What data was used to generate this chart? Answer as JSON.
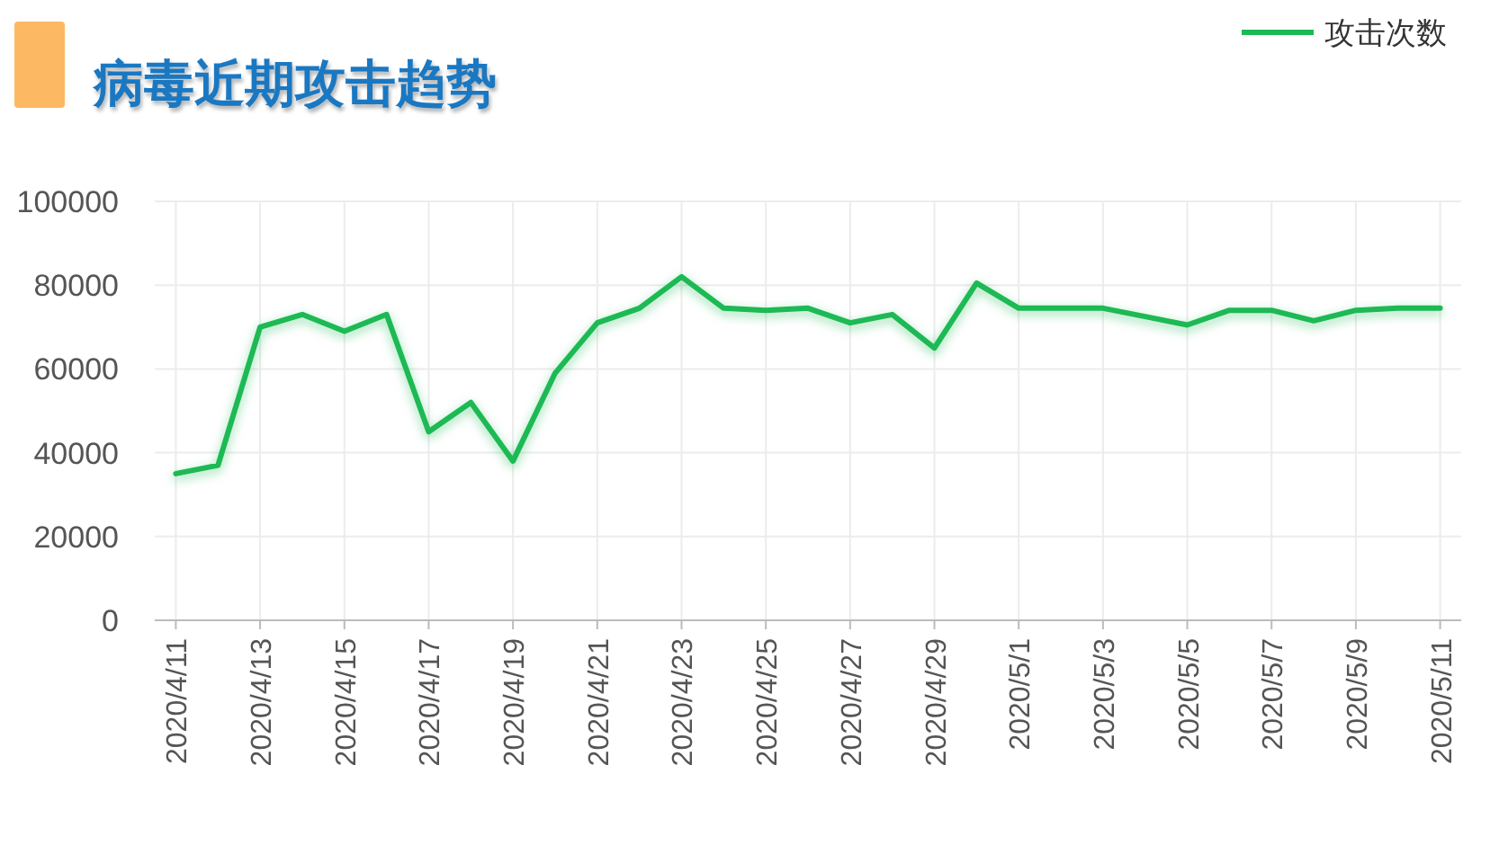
{
  "chart_data": {
    "type": "line",
    "title": "病毒近期攻击趋势",
    "categories": [
      "2020/4/11",
      null,
      "2020/4/13",
      null,
      "2020/4/15",
      null,
      "2020/4/17",
      null,
      "2020/4/19",
      null,
      "2020/4/21",
      null,
      "2020/4/23",
      null,
      "2020/4/25",
      null,
      "2020/4/27",
      null,
      "2020/4/29",
      null,
      "2020/5/1",
      null,
      "2020/5/3",
      null,
      "2020/5/5",
      null,
      "2020/5/7",
      null,
      "2020/5/9",
      null,
      "2020/5/11"
    ],
    "series": [
      {
        "name": "攻击次数",
        "color": "#1db954",
        "values": [
          35000,
          37000,
          70000,
          73000,
          69000,
          73000,
          45000,
          52000,
          38000,
          59000,
          71000,
          74500,
          82000,
          74500,
          74000,
          74500,
          71000,
          73000,
          65000,
          80500,
          74500,
          74500,
          74500,
          72500,
          70500,
          74000,
          74000,
          71500,
          74000,
          74500,
          74500
        ]
      }
    ],
    "ylim": [
      0,
      100000
    ],
    "yticks": [
      0,
      20000,
      40000,
      60000,
      80000,
      100000
    ],
    "grid": true,
    "legend": "top right",
    "marker": "none",
    "line_style": "solid"
  }
}
